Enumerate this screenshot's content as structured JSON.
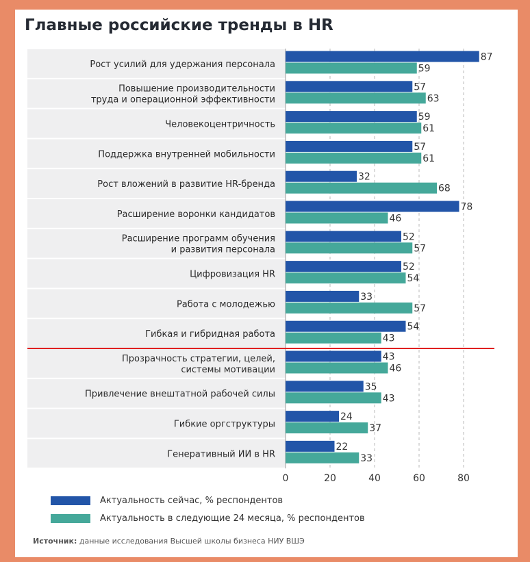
{
  "title": "Главные российские тренды в HR",
  "source": {
    "label": "Источник:",
    "text": "данные исследования Высшей школы бизнеса НИУ ВШЭ"
  },
  "colors": {
    "now": "#2255a8",
    "next": "#45a89a",
    "separator": "#e02020",
    "row_bg": "#efeff0",
    "frame": "#e98b67"
  },
  "chart_data": {
    "type": "bar",
    "orientation": "horizontal",
    "categories": [
      [
        "Рост усилий для удержания персонала"
      ],
      [
        "Повышение производительности",
        "труда и операционной эффективности"
      ],
      [
        "Человекоцентричность"
      ],
      [
        "Поддержка внутренней мобильности"
      ],
      [
        "Рост вложений в развитие HR-бренда"
      ],
      [
        "Расширение воронки кандидатов"
      ],
      [
        "Расширение программ обучения",
        "и развития персонала"
      ],
      [
        "Цифровизация HR"
      ],
      [
        "Работа с молодежью"
      ],
      [
        "Гибкая и гибридная работа"
      ],
      [
        "Прозрачность стратегии, целей,",
        "системы мотивации"
      ],
      [
        "Привлечение внештатной рабочей силы"
      ],
      [
        "Гибкие оргструктуры"
      ],
      [
        "Генеративный ИИ в HR"
      ]
    ],
    "series": [
      {
        "name": "Актуальность сейчас, % респондентов",
        "values": [
          87,
          57,
          59,
          57,
          32,
          78,
          52,
          52,
          33,
          54,
          43,
          35,
          24,
          22
        ]
      },
      {
        "name": "Актуальность в следующие 24 месяца, % респондентов",
        "values": [
          59,
          63,
          61,
          61,
          68,
          46,
          57,
          54,
          57,
          43,
          46,
          43,
          37,
          33
        ]
      }
    ],
    "xlim": [
      0,
      90
    ],
    "xticks": [
      0,
      20,
      40,
      60,
      80
    ],
    "separator_after_index": 9,
    "grid": "dashed vertical",
    "legend_position": "bottom-left"
  }
}
